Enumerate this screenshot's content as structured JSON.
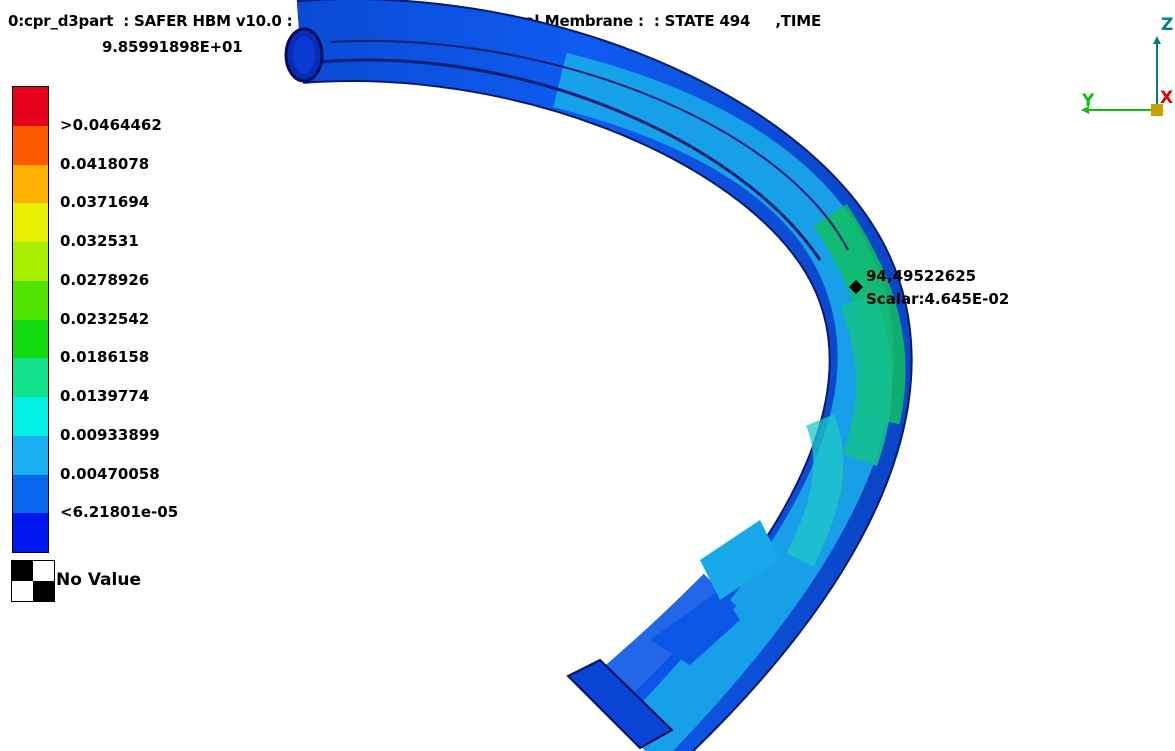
{
  "header": {
    "title_line1": "0:cpr_d3part  : SAFER HBM v10.0 : Scalar: Strains,First Principal,Membrane :  : STATE 494     ,TIME",
    "title_line2": "9.85991898E+01"
  },
  "legend": {
    "colors": [
      "#e8001c",
      "#ff5a00",
      "#ffb000",
      "#e8f000",
      "#a8ee00",
      "#50e600",
      "#10dc10",
      "#10e28a",
      "#00f0e4",
      "#18b0f0",
      "#0a66f0",
      "#0016ee"
    ],
    "labels": [
      ">0.0464462",
      "0.0418078",
      "0.0371694",
      "0.032531",
      "0.0278926",
      "0.0232542",
      "0.0186158",
      "0.0139774",
      "0.00933899",
      "0.00470058",
      "<6.21801e-05"
    ],
    "no_value_label": "No Value"
  },
  "probe": {
    "element_id": "94,49522625",
    "scalar": "Scalar:4.645E-02"
  },
  "axes": {
    "z_label": "Z",
    "y_label": "Y",
    "x_label": "X",
    "z_color": "#008080",
    "y_color": "#10c010",
    "x_color": "#e00000"
  }
}
